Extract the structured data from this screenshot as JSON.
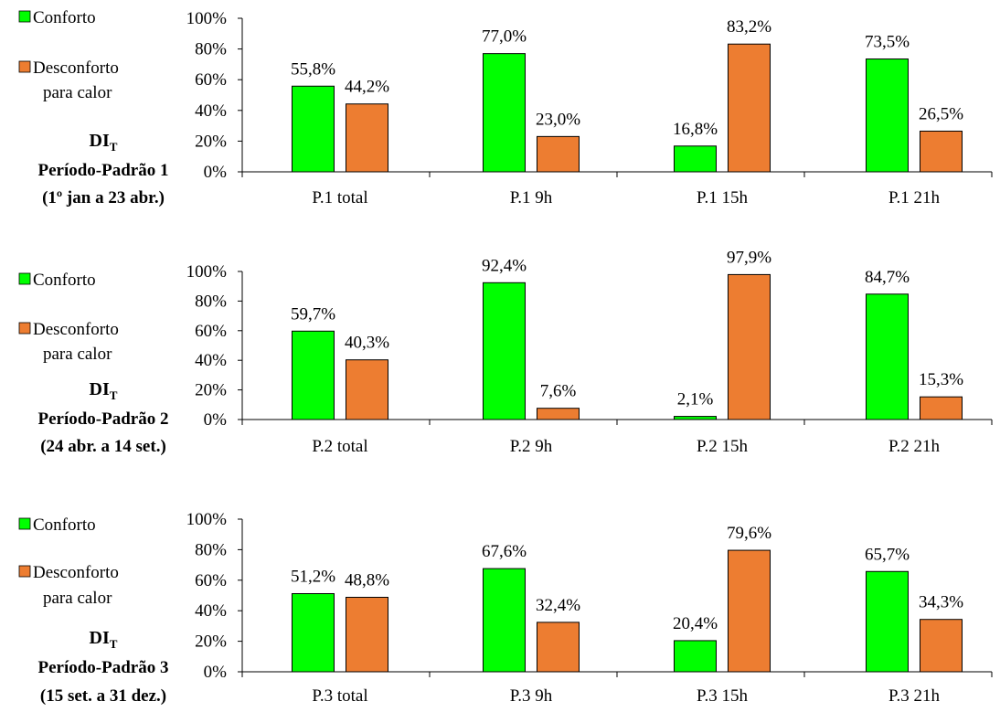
{
  "colors": {
    "conforto": "#00ff00",
    "desconforto": "#ed7d31",
    "bar_stroke": "#000000",
    "axis": "#000000",
    "text": "#000000"
  },
  "chart_data": [
    {
      "type": "bar",
      "legend": [
        {
          "name": "Conforto",
          "color": "#00ff00",
          "lines": [
            "Conforto"
          ]
        },
        {
          "name": "Desconforto para calor",
          "color": "#ed7d31",
          "lines": [
            "Desconforto",
            "para calor"
          ]
        }
      ],
      "side_label": {
        "index": "DI",
        "subscript": "T",
        "line2": "Período-Padrão 1",
        "line3": "(1º jan a 23 abr.)"
      },
      "categories": [
        "P.1 total",
        "P.1 9h",
        "P.1 15h",
        "P.1 21h"
      ],
      "series": [
        {
          "name": "Conforto",
          "values": [
            55.8,
            77.0,
            16.8,
            73.5
          ],
          "labels": [
            "55,8%",
            "77,0%",
            "16,8%",
            "73,5%"
          ]
        },
        {
          "name": "Desconforto para calor",
          "values": [
            44.2,
            23.0,
            83.2,
            26.5
          ],
          "labels": [
            "44,2%",
            "23,0%",
            "83,2%",
            "26,5%"
          ]
        }
      ],
      "ylim": [
        0,
        100
      ],
      "yticks": [
        "0%",
        "20%",
        "40%",
        "60%",
        "80%",
        "100%"
      ],
      "legend_position": "left",
      "grid": false
    },
    {
      "type": "bar",
      "legend": [
        {
          "name": "Conforto",
          "color": "#00ff00",
          "lines": [
            "Conforto"
          ]
        },
        {
          "name": "Desconforto para calor",
          "color": "#ed7d31",
          "lines": [
            "Desconforto",
            "para calor"
          ]
        }
      ],
      "side_label": {
        "index": "DI",
        "subscript": "T",
        "line2": "Período-Padrão 2",
        "line3": "(24 abr. a 14 set.)"
      },
      "categories": [
        "P.2 total",
        "P.2 9h",
        "P.2 15h",
        "P.2 21h"
      ],
      "series": [
        {
          "name": "Conforto",
          "values": [
            59.7,
            92.4,
            2.1,
            84.7
          ],
          "labels": [
            "59,7%",
            "92,4%",
            "2,1%",
            "84,7%"
          ]
        },
        {
          "name": "Desconforto para calor",
          "values": [
            40.3,
            7.6,
            97.9,
            15.3
          ],
          "labels": [
            "40,3%",
            "7,6%",
            "97,9%",
            "15,3%"
          ]
        }
      ],
      "ylim": [
        0,
        100
      ],
      "yticks": [
        "0%",
        "20%",
        "40%",
        "60%",
        "80%",
        "100%"
      ],
      "legend_position": "left",
      "grid": false
    },
    {
      "type": "bar",
      "legend": [
        {
          "name": "Conforto",
          "color": "#00ff00",
          "lines": [
            "Conforto"
          ]
        },
        {
          "name": "Desconforto para calor",
          "color": "#ed7d31",
          "lines": [
            "Desconforto",
            "para calor"
          ]
        }
      ],
      "side_label": {
        "index": "DI",
        "subscript": "T",
        "line2": "Período-Padrão 3",
        "line3": "(15 set. a 31 dez.)"
      },
      "categories": [
        "P.3 total",
        "P.3 9h",
        "P.3 15h",
        "P.3 21h"
      ],
      "series": [
        {
          "name": "Conforto",
          "values": [
            51.2,
            67.6,
            20.4,
            65.7
          ],
          "labels": [
            "51,2%",
            "67,6%",
            "20,4%",
            "65,7%"
          ]
        },
        {
          "name": "Desconforto para calor",
          "values": [
            48.8,
            32.4,
            79.6,
            34.3
          ],
          "labels": [
            "48,8%",
            "32,4%",
            "79,6%",
            "34,3%"
          ]
        }
      ],
      "ylim": [
        0,
        100
      ],
      "yticks": [
        "0%",
        "20%",
        "40%",
        "60%",
        "80%",
        "100%"
      ],
      "legend_position": "left",
      "grid": false
    }
  ]
}
